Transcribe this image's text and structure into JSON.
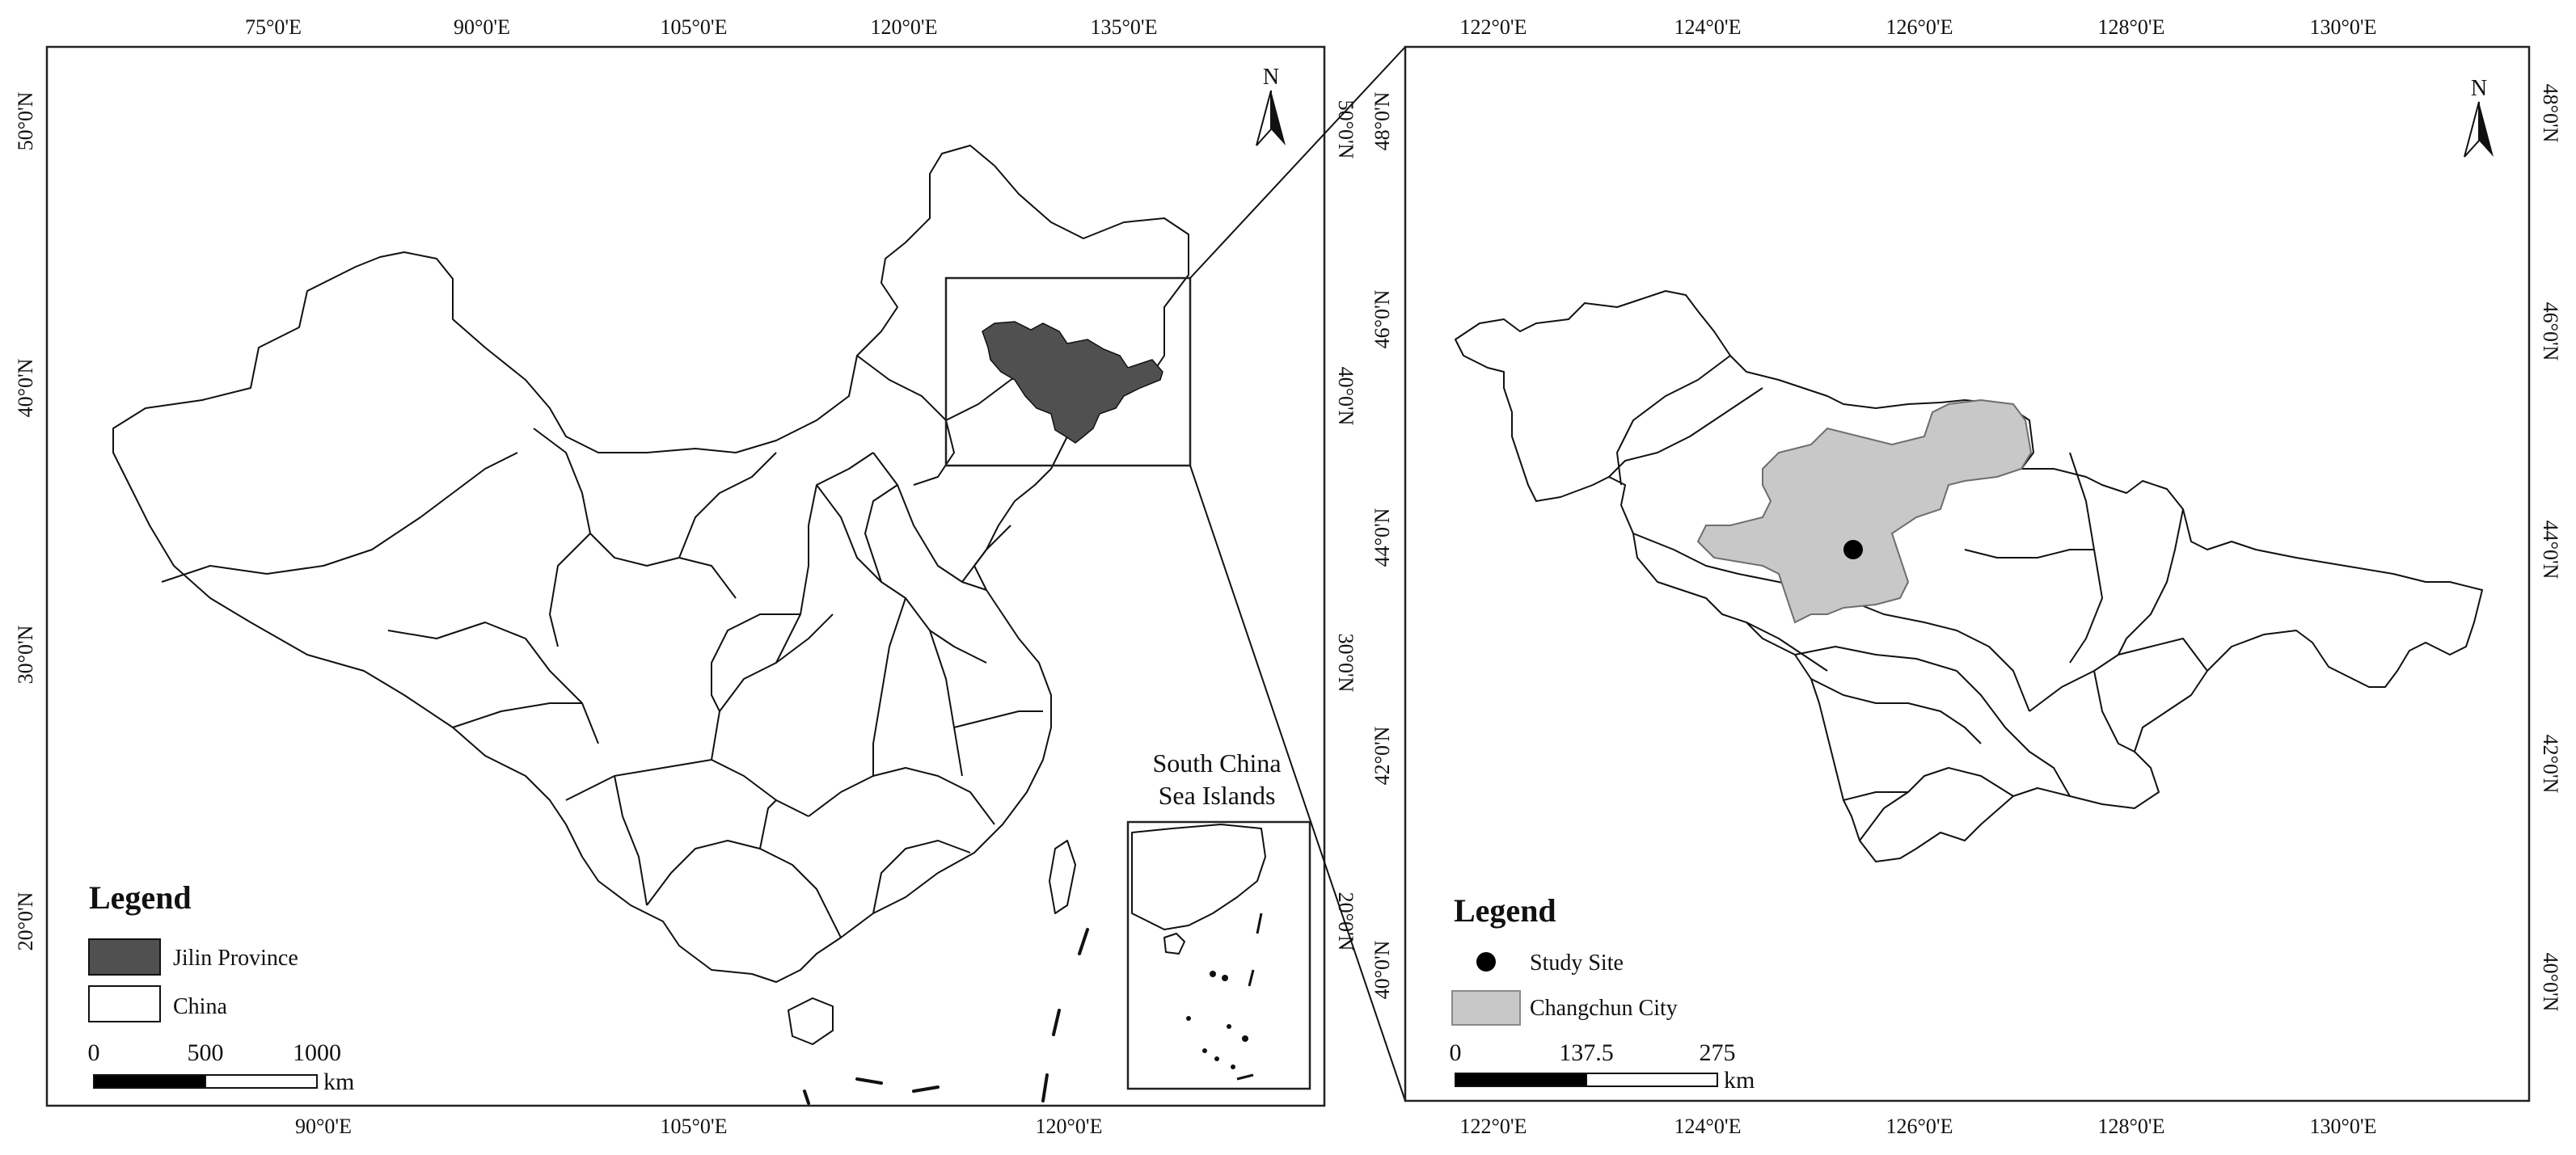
{
  "left_map": {
    "top_ticks": [
      "75°0'E",
      "90°0'E",
      "105°0'E",
      "120°0'E",
      "135°0'E"
    ],
    "bottom_ticks": [
      "90°0'E",
      "105°0'E",
      "120°0'E"
    ],
    "left_ticks": [
      "50°0'N",
      "40°0'N",
      "30°0'N",
      "20°0'N"
    ],
    "right_ticks": [
      "50°0'N",
      "40°0'N",
      "30°0'N",
      "20°0'N"
    ],
    "north_label": "N",
    "inset_label_line1": "South China",
    "inset_label_line2": "Sea Islands",
    "legend": {
      "title": "Legend",
      "items": [
        {
          "label": "Jilin Province",
          "color": "#505050"
        },
        {
          "label": "China",
          "color": "#ffffff"
        }
      ]
    },
    "scale": {
      "labels": [
        "0",
        "500",
        "1000"
      ],
      "unit": "km"
    }
  },
  "right_map": {
    "top_ticks": [
      "122°0'E",
      "124°0'E",
      "126°0'E",
      "128°0'E",
      "130°0'E"
    ],
    "bottom_ticks": [
      "122°0'E",
      "124°0'E",
      "126°0'E",
      "128°0'E",
      "130°0'E"
    ],
    "left_ticks": [
      "48°0'N",
      "46°0'N",
      "44°0'N",
      "42°0'N",
      "40°0'N"
    ],
    "right_ticks": [
      "48°0'N",
      "46°0'N",
      "44°0'N",
      "42°0'N",
      "40°0'N"
    ],
    "north_label": "N",
    "legend": {
      "title": "Legend",
      "items": [
        {
          "label": "Study Site",
          "symbol": "dot",
          "color": "#000000"
        },
        {
          "label": "Changchun City",
          "color": "#c8c8c8"
        }
      ]
    },
    "scale": {
      "labels": [
        "0",
        "137.5",
        "275"
      ],
      "unit": "km"
    }
  }
}
